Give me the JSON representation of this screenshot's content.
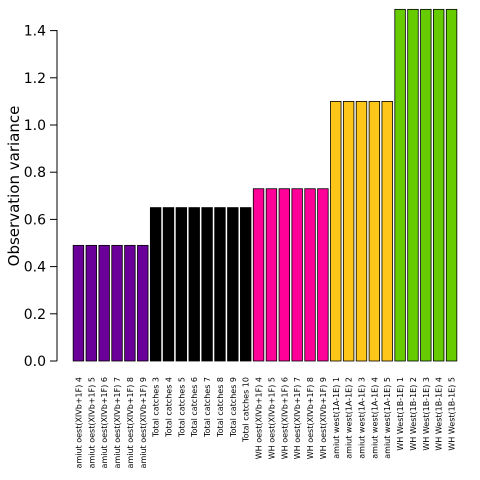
{
  "chart_data": {
    "type": "bar",
    "title": "",
    "xlabel": "",
    "ylabel": "Observation variance",
    "ylim": [
      0,
      1.5
    ],
    "yticks": [
      "0.0",
      "0.2",
      "0.4",
      "0.6",
      "0.8",
      "1.0",
      "1.2",
      "1.4"
    ],
    "categories": [
      "amiut oest(XIVb+1F) 4",
      "amiut oest(XIVb+1F) 5",
      "amiut oest(XIVb+1F) 6",
      "amiut oest(XIVb+1F) 7",
      "amiut oest(XIVb+1F) 8",
      "amiut oest(XIVb+1F) 9",
      "Total catches 3",
      "Total catches 4",
      "Total catches 5",
      "Total catches 6",
      "Total catches 7",
      "Total catches 8",
      "Total catches 9",
      "Total catches 10",
      "WH oest(XIVb+1F) 4",
      "WH oest(XIVb+1F) 5",
      "WH oest(XIVb+1F) 6",
      "WH oest(XIVb+1F) 7",
      "WH oest(XIVb+1F) 8",
      "WH oest(XIVb+1F) 9",
      "amiut west(1A-1E) 1",
      "amiut west(1A-1E) 2",
      "amiut west(1A-1E) 3",
      "amiut west(1A-1E) 4",
      "amiut west(1A-1E) 5",
      "WH West(1B-1E) 1",
      "WH West(1B-1E) 2",
      "WH West(1B-1E) 3",
      "WH West(1B-1E) 4",
      "WH West(1B-1E) 5"
    ],
    "values": [
      0.49,
      0.49,
      0.49,
      0.49,
      0.49,
      0.49,
      0.65,
      0.65,
      0.65,
      0.65,
      0.65,
      0.65,
      0.65,
      0.65,
      0.73,
      0.73,
      0.73,
      0.73,
      0.73,
      0.73,
      1.1,
      1.1,
      1.1,
      1.1,
      1.1,
      1.49,
      1.49,
      1.49,
      1.49,
      1.49
    ],
    "bar_colors": [
      "#6a0099",
      "#6a0099",
      "#6a0099",
      "#6a0099",
      "#6a0099",
      "#6a0099",
      "#000000",
      "#000000",
      "#000000",
      "#000000",
      "#000000",
      "#000000",
      "#000000",
      "#000000",
      "#ff0099",
      "#ff0099",
      "#ff0099",
      "#ff0099",
      "#ff0099",
      "#ff0099",
      "#ffc61a",
      "#ffc61a",
      "#ffc61a",
      "#ffc61a",
      "#ffc61a",
      "#66cc00",
      "#66cc00",
      "#66cc00",
      "#66cc00",
      "#66cc00"
    ],
    "grid": false,
    "legend": "none"
  }
}
